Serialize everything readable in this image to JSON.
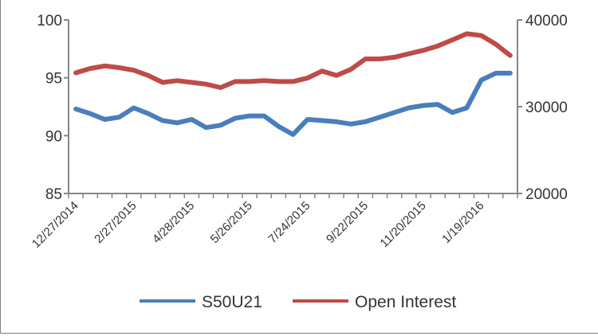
{
  "chart_data": {
    "type": "line",
    "title": "",
    "xlabel": "",
    "ylabel_left": "",
    "ylabel_right": "",
    "ylim_left": [
      85,
      100
    ],
    "ylim_right": [
      20000,
      40000
    ],
    "yticks_left": [
      "100",
      "95",
      "90",
      "85"
    ],
    "yticks_right": [
      "40000",
      "30000",
      "20000"
    ],
    "x_tick_labels": [
      "12/27/2014",
      "2/27/2015",
      "4/28/2015",
      "5/26/2015",
      "7/24/2015",
      "9/22/2015",
      "11/20/2015",
      "1/19/2016"
    ],
    "grid": false,
    "legend_position": "bottom",
    "series": [
      {
        "name": "S50U21",
        "axis": "left",
        "color": "#4a7ebb",
        "values": [
          92.3,
          91.9,
          91.4,
          91.6,
          92.4,
          91.9,
          91.3,
          91.1,
          91.4,
          90.7,
          90.9,
          91.5,
          91.7,
          91.7,
          90.8,
          90.1,
          91.4,
          91.3,
          91.2,
          91.0,
          91.2,
          91.6,
          92.0,
          92.4,
          92.6,
          92.7,
          92.0,
          92.4,
          94.8,
          95.4,
          95.4
        ]
      },
      {
        "name": "Open Interest",
        "axis": "right",
        "color": "#be4b48",
        "values": [
          33900,
          34400,
          34700,
          34500,
          34200,
          33600,
          32800,
          33000,
          32800,
          32600,
          32200,
          32900,
          32900,
          33000,
          32900,
          32900,
          33300,
          34100,
          33600,
          34300,
          35500,
          35500,
          35700,
          36100,
          36500,
          37000,
          37700,
          38400,
          38200,
          37200,
          35900
        ]
      }
    ]
  }
}
